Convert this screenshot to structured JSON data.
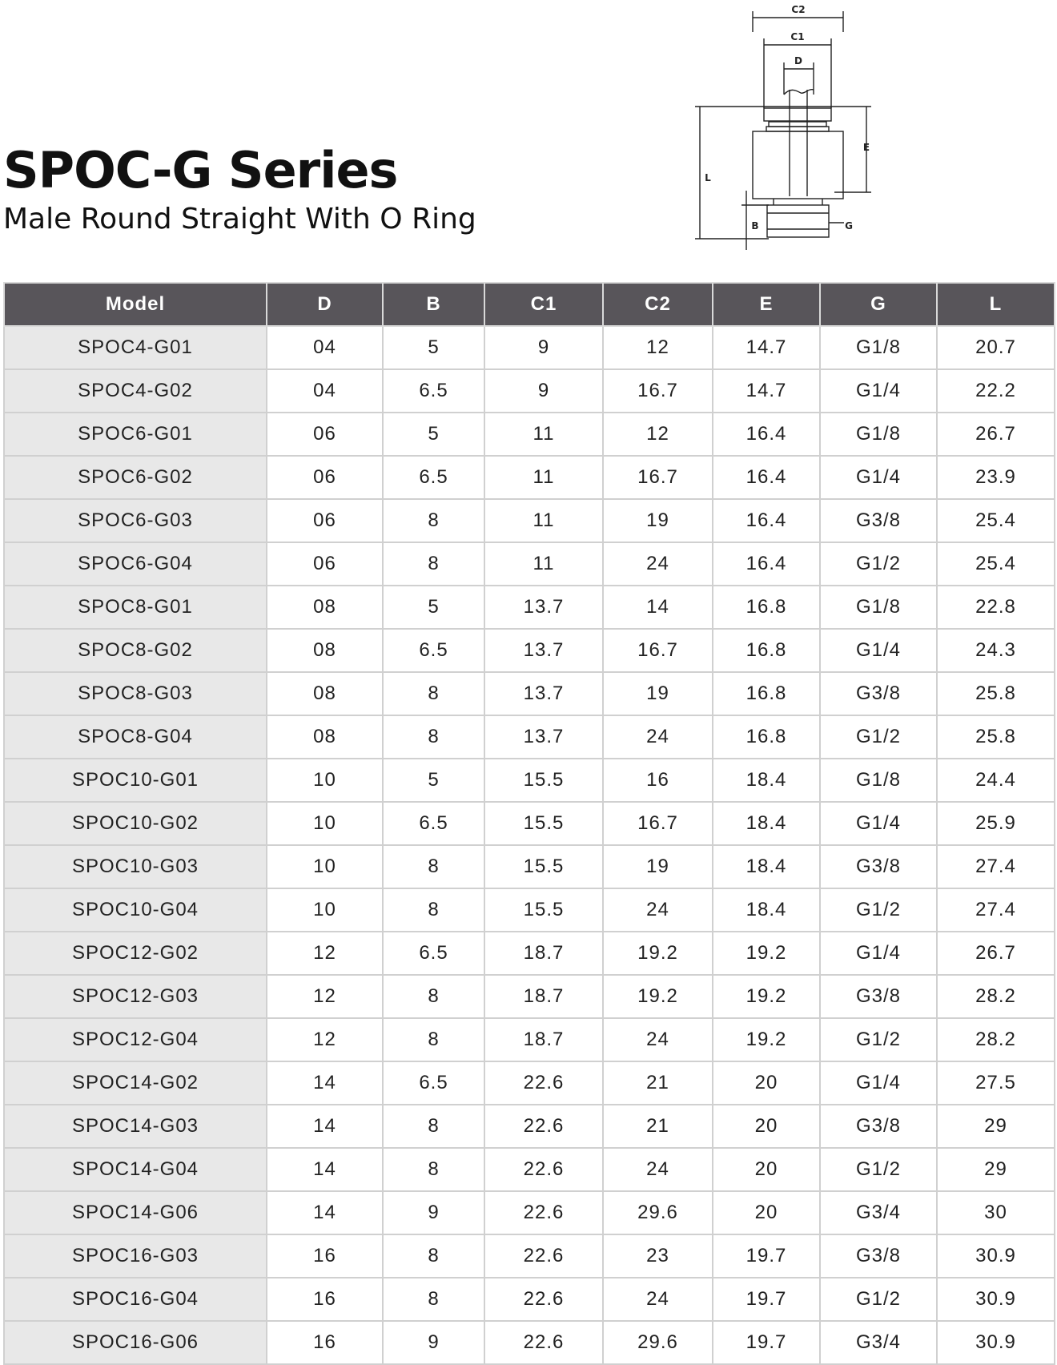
{
  "header": {
    "title": "SPOC-G Series",
    "subtitle": "Male Round Straight  With O Ring"
  },
  "diagram": {
    "labels": {
      "c2": "C2",
      "c1": "C1",
      "d": "D",
      "e": "E",
      "l": "L",
      "b": "B",
      "g": "G"
    }
  },
  "table": {
    "columns": [
      "Model",
      "D",
      "B",
      "C1",
      "C2",
      "E",
      "G",
      "L"
    ],
    "rows": [
      [
        "SPOC4-G01",
        "04",
        "5",
        "9",
        "12",
        "14.7",
        "G1/8",
        "20.7"
      ],
      [
        "SPOC4-G02",
        "04",
        "6.5",
        "9",
        "16.7",
        "14.7",
        "G1/4",
        "22.2"
      ],
      [
        "SPOC6-G01",
        "06",
        "5",
        "11",
        "12",
        "16.4",
        "G1/8",
        "26.7"
      ],
      [
        "SPOC6-G02",
        "06",
        "6.5",
        "11",
        "16.7",
        "16.4",
        "G1/4",
        "23.9"
      ],
      [
        "SPOC6-G03",
        "06",
        "8",
        "11",
        "19",
        "16.4",
        "G3/8",
        "25.4"
      ],
      [
        "SPOC6-G04",
        "06",
        "8",
        "11",
        "24",
        "16.4",
        "G1/2",
        "25.4"
      ],
      [
        "SPOC8-G01",
        "08",
        "5",
        "13.7",
        "14",
        "16.8",
        "G1/8",
        "22.8"
      ],
      [
        "SPOC8-G02",
        "08",
        "6.5",
        "13.7",
        "16.7",
        "16.8",
        "G1/4",
        "24.3"
      ],
      [
        "SPOC8-G03",
        "08",
        "8",
        "13.7",
        "19",
        "16.8",
        "G3/8",
        "25.8"
      ],
      [
        "SPOC8-G04",
        "08",
        "8",
        "13.7",
        "24",
        "16.8",
        "G1/2",
        "25.8"
      ],
      [
        "SPOC10-G01",
        "10",
        "5",
        "15.5",
        "16",
        "18.4",
        "G1/8",
        "24.4"
      ],
      [
        "SPOC10-G02",
        "10",
        "6.5",
        "15.5",
        "16.7",
        "18.4",
        "G1/4",
        "25.9"
      ],
      [
        "SPOC10-G03",
        "10",
        "8",
        "15.5",
        "19",
        "18.4",
        "G3/8",
        "27.4"
      ],
      [
        "SPOC10-G04",
        "10",
        "8",
        "15.5",
        "24",
        "18.4",
        "G1/2",
        "27.4"
      ],
      [
        "SPOC12-G02",
        "12",
        "6.5",
        "18.7",
        "19.2",
        "19.2",
        "G1/4",
        "26.7"
      ],
      [
        "SPOC12-G03",
        "12",
        "8",
        "18.7",
        "19.2",
        "19.2",
        "G3/8",
        "28.2"
      ],
      [
        "SPOC12-G04",
        "12",
        "8",
        "18.7",
        "24",
        "19.2",
        "G1/2",
        "28.2"
      ],
      [
        "SPOC14-G02",
        "14",
        "6.5",
        "22.6",
        "21",
        "20",
        "G1/4",
        "27.5"
      ],
      [
        "SPOC14-G03",
        "14",
        "8",
        "22.6",
        "21",
        "20",
        "G3/8",
        "29"
      ],
      [
        "SPOC14-G04",
        "14",
        "8",
        "22.6",
        "24",
        "20",
        "G1/2",
        "29"
      ],
      [
        "SPOC14-G06",
        "14",
        "9",
        "22.6",
        "29.6",
        "20",
        "G3/4",
        "30"
      ],
      [
        "SPOC16-G03",
        "16",
        "8",
        "22.6",
        "23",
        "19.7",
        "G3/8",
        "30.9"
      ],
      [
        "SPOC16-G04",
        "16",
        "8",
        "22.6",
        "24",
        "19.7",
        "G1/2",
        "30.9"
      ],
      [
        "SPOC16-G06",
        "16",
        "9",
        "22.6",
        "29.6",
        "19.7",
        "G3/4",
        "30.9"
      ]
    ]
  }
}
